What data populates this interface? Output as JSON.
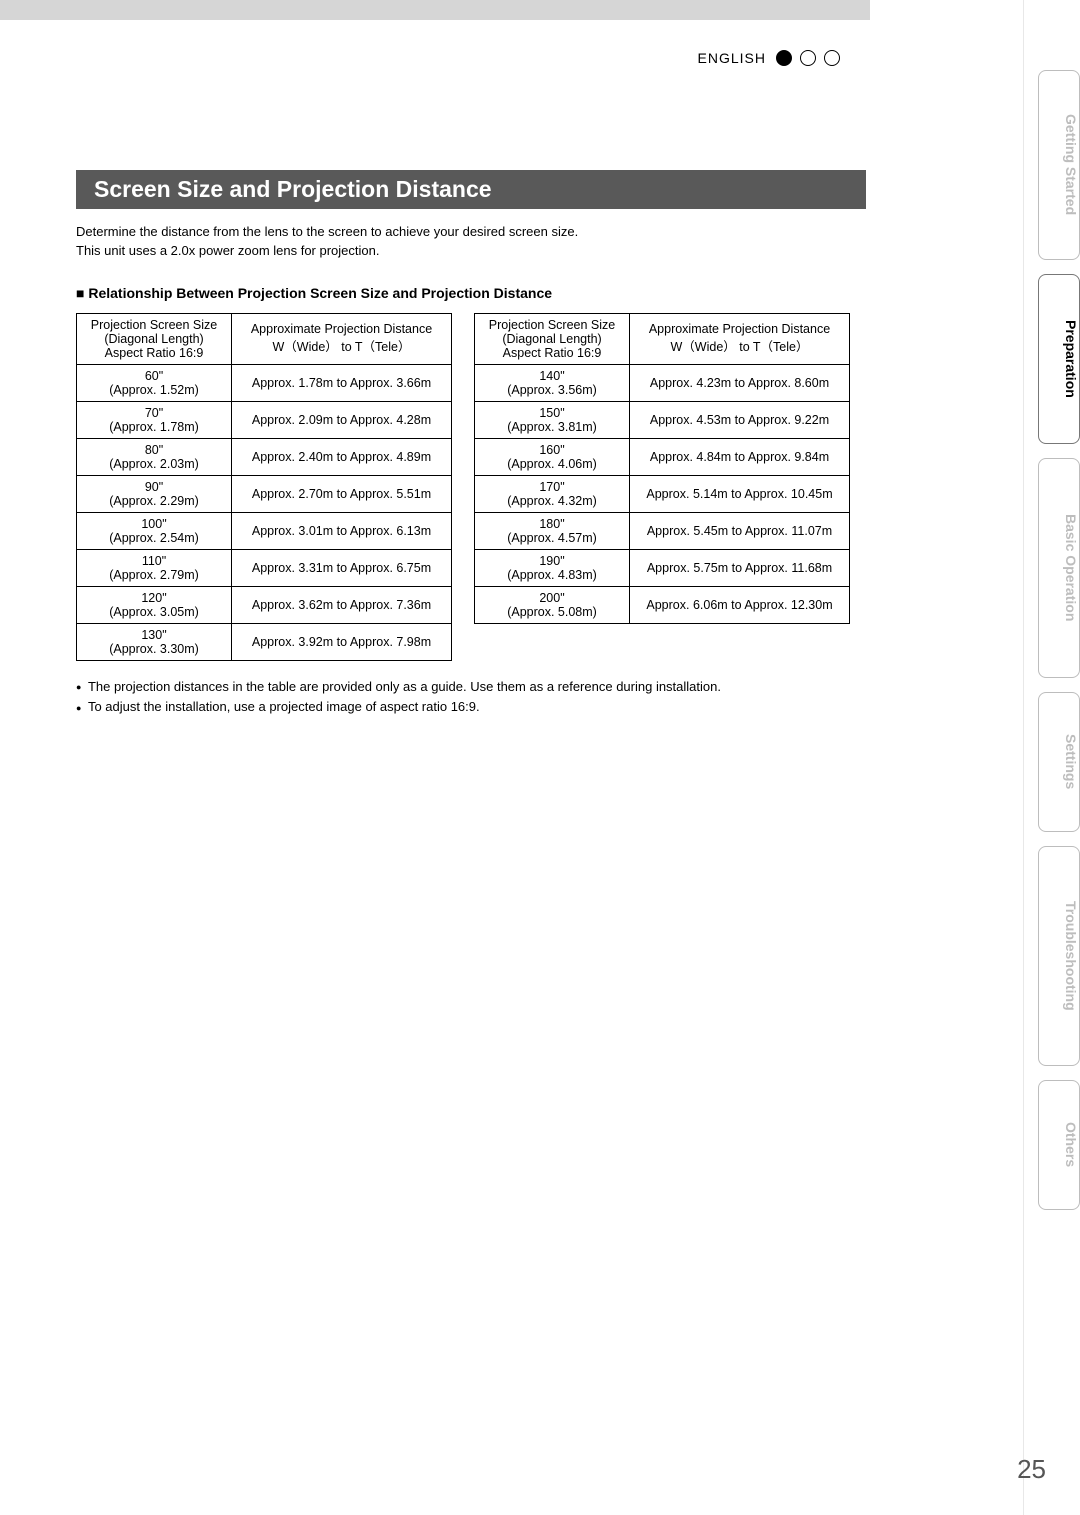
{
  "header": {
    "language_label": "ENGLISH",
    "dots": [
      true,
      false,
      false
    ]
  },
  "section": {
    "title": "Screen Size and Projection Distance",
    "intro_line1": "Determine the distance from the lens to the screen to achieve your desired screen size.",
    "intro_line2": "This unit uses a 2.0x power zoom lens for projection.",
    "relationship_heading": "Relationship Between Projection Screen Size and Projection Distance"
  },
  "table_headers": {
    "size_l1": "Projection Screen Size",
    "size_l2": "(Diagonal Length)",
    "size_l3": "Aspect Ratio 16:9",
    "dist_l1": "Approximate Projection Distance",
    "dist_l2": "W（Wide） to  T（Tele）"
  },
  "table_left": [
    {
      "size_top": "60\"",
      "size_bottom": "(Approx. 1.52m)",
      "dist": "Approx. 1.78m to Approx. 3.66m"
    },
    {
      "size_top": "70\"",
      "size_bottom": "(Approx. 1.78m)",
      "dist": "Approx. 2.09m to Approx. 4.28m"
    },
    {
      "size_top": "80\"",
      "size_bottom": "(Approx. 2.03m)",
      "dist": "Approx. 2.40m to Approx. 4.89m"
    },
    {
      "size_top": "90\"",
      "size_bottom": "(Approx. 2.29m)",
      "dist": "Approx. 2.70m to Approx. 5.51m"
    },
    {
      "size_top": "100\"",
      "size_bottom": "(Approx. 2.54m)",
      "dist": "Approx. 3.01m to Approx. 6.13m"
    },
    {
      "size_top": "110\"",
      "size_bottom": "(Approx. 2.79m)",
      "dist": "Approx. 3.31m to Approx. 6.75m"
    },
    {
      "size_top": "120\"",
      "size_bottom": "(Approx. 3.05m)",
      "dist": "Approx. 3.62m to Approx. 7.36m"
    },
    {
      "size_top": "130\"",
      "size_bottom": "(Approx. 3.30m)",
      "dist": "Approx. 3.92m to Approx. 7.98m"
    }
  ],
  "table_right": [
    {
      "size_top": "140\"",
      "size_bottom": "(Approx. 3.56m)",
      "dist": "Approx. 4.23m to Approx. 8.60m"
    },
    {
      "size_top": "150\"",
      "size_bottom": "(Approx. 3.81m)",
      "dist": "Approx. 4.53m to Approx. 9.22m"
    },
    {
      "size_top": "160\"",
      "size_bottom": "(Approx. 4.06m)",
      "dist": "Approx. 4.84m to Approx. 9.84m"
    },
    {
      "size_top": "170\"",
      "size_bottom": "(Approx. 4.32m)",
      "dist": "Approx. 5.14m to Approx. 10.45m"
    },
    {
      "size_top": "180\"",
      "size_bottom": "(Approx. 4.57m)",
      "dist": "Approx. 5.45m to Approx. 11.07m"
    },
    {
      "size_top": "190\"",
      "size_bottom": "(Approx. 4.83m)",
      "dist": "Approx. 5.75m to Approx. 11.68m"
    },
    {
      "size_top": "200\"",
      "size_bottom": "(Approx. 5.08m)",
      "dist": "Approx. 6.06m to Approx. 12.30m"
    }
  ],
  "notes": [
    "The projection distances in the table are provided only as a guide. Use them as a reference during installation.",
    "To adjust the installation, use a projected image of aspect ratio 16:9."
  ],
  "side_tabs": [
    {
      "label": "Getting Started",
      "active": false
    },
    {
      "label": "Preparation",
      "active": true
    },
    {
      "label": "Basic Operation",
      "active": false
    },
    {
      "label": "Settings",
      "active": false
    },
    {
      "label": "Troubleshooting",
      "active": false
    },
    {
      "label": "Others",
      "active": false
    }
  ],
  "page_number": "25",
  "colors": {
    "title_bar_bg": "#595959",
    "title_bar_text": "#ffffff",
    "top_bar_bg": "#d6d6d6",
    "tab_inactive_text": "#bdbdbd",
    "tab_active_text": "#000000",
    "page_number_color": "#555555"
  }
}
